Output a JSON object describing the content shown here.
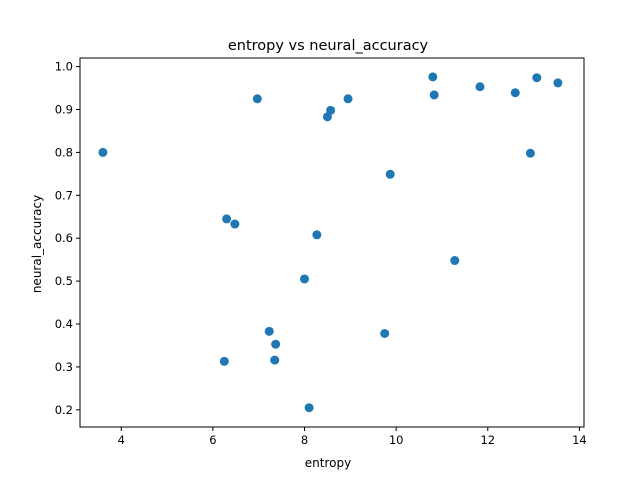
{
  "chart_data": {
    "type": "scatter",
    "title": "entropy vs neural_accuracy",
    "xlabel": "entropy",
    "ylabel": "neural_accuracy",
    "xlim": [
      3.1,
      14.1
    ],
    "ylim": [
      0.16,
      1.02
    ],
    "xticks": [
      4,
      6,
      8,
      10,
      12,
      14
    ],
    "yticks": [
      0.2,
      0.3,
      0.4,
      0.5,
      0.6,
      0.7,
      0.8,
      0.9,
      1.0
    ],
    "xtick_labels": [
      "4",
      "6",
      "8",
      "10",
      "12",
      "14"
    ],
    "ytick_labels": [
      "0.2",
      "0.3",
      "0.4",
      "0.5",
      "0.6",
      "0.7",
      "0.8",
      "0.9",
      "1.0"
    ],
    "grid": false,
    "legend": "none",
    "marker_color": "#1f77b4",
    "points": [
      {
        "x": 3.6,
        "y": 0.8
      },
      {
        "x": 6.25,
        "y": 0.313
      },
      {
        "x": 6.3,
        "y": 0.645
      },
      {
        "x": 6.48,
        "y": 0.633
      },
      {
        "x": 6.97,
        "y": 0.925
      },
      {
        "x": 7.23,
        "y": 0.383
      },
      {
        "x": 7.35,
        "y": 0.316
      },
      {
        "x": 7.37,
        "y": 0.353
      },
      {
        "x": 8.0,
        "y": 0.505
      },
      {
        "x": 8.1,
        "y": 0.205
      },
      {
        "x": 8.27,
        "y": 0.608
      },
      {
        "x": 8.5,
        "y": 0.883
      },
      {
        "x": 8.57,
        "y": 0.898
      },
      {
        "x": 8.95,
        "y": 0.925
      },
      {
        "x": 9.75,
        "y": 0.378
      },
      {
        "x": 9.87,
        "y": 0.749
      },
      {
        "x": 10.8,
        "y": 0.976
      },
      {
        "x": 10.83,
        "y": 0.934
      },
      {
        "x": 11.28,
        "y": 0.548
      },
      {
        "x": 11.83,
        "y": 0.953
      },
      {
        "x": 12.6,
        "y": 0.939
      },
      {
        "x": 12.93,
        "y": 0.798
      },
      {
        "x": 13.07,
        "y": 0.974
      },
      {
        "x": 13.53,
        "y": 0.962
      }
    ]
  }
}
